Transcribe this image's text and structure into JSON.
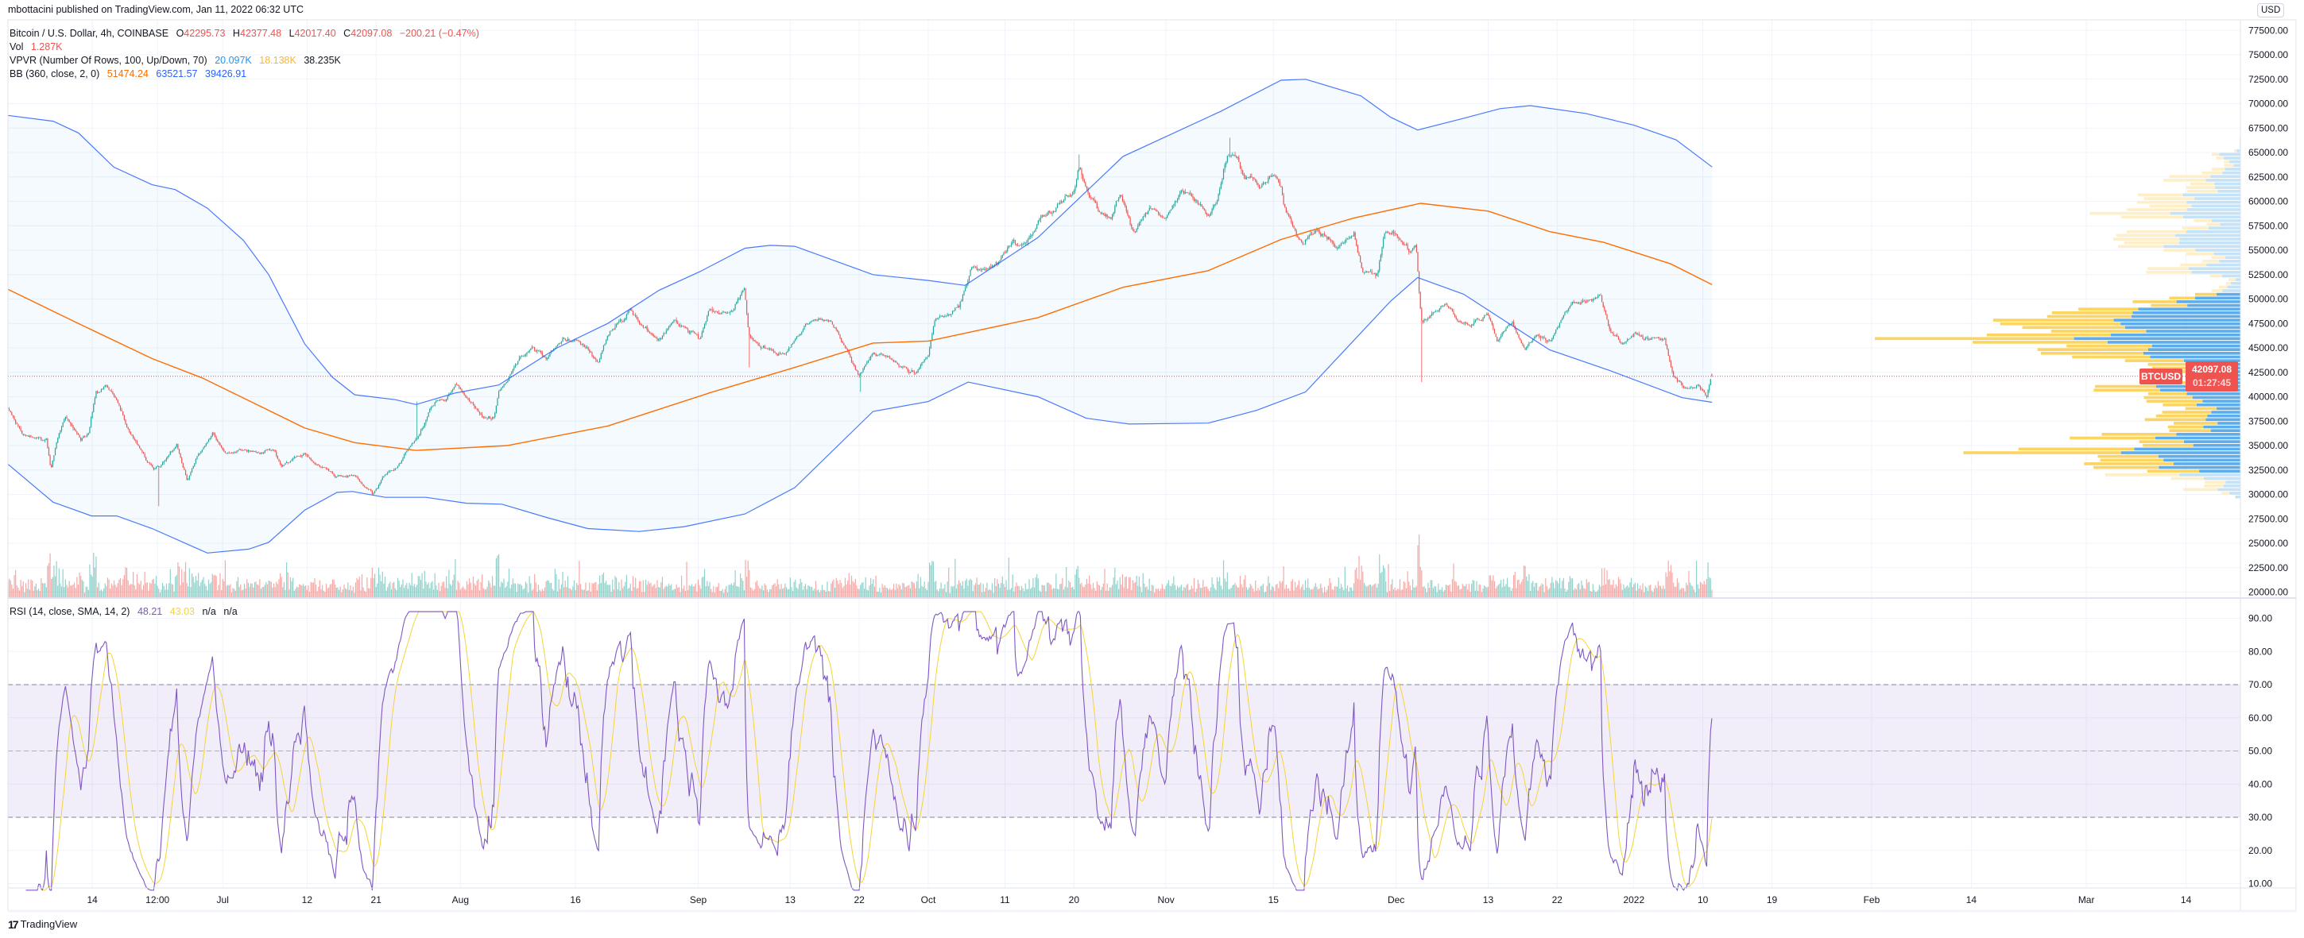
{
  "header": {
    "publisher_line": "mbottacini published on TradingView.com, Jan 11, 2022 06:32 UTC"
  },
  "legend": {
    "symbol": "Bitcoin / U.S. Dollar, 4h, COINBASE",
    "o_label": "O",
    "o": "42295.73",
    "h_label": "H",
    "h": "42377.48",
    "l_label": "L",
    "l": "42017.40",
    "c_label": "C",
    "c": "42097.08",
    "change": "−200.21 (−0.47%)",
    "vol_label": "Vol",
    "vol": "1.287K",
    "vpvr_label": "VPVR (Number Of Rows, 100, Up/Down, 70)",
    "vpvr_up": "20.097K",
    "vpvr_down": "18.138K",
    "vpvr_total": "38.235K",
    "bb_label": "BB (360, close, 2, 0)",
    "bb_basis": "51474.24",
    "bb_upper": "63521.57",
    "bb_lower": "39426.91"
  },
  "rsi_legend": {
    "label": "RSI (14, close, SMA, 14, 2)",
    "value": "48.21",
    "sma": "43.03",
    "na1": "n/a",
    "na2": "n/a"
  },
  "price_axis": {
    "currency": "USD",
    "labels": [
      "77500.00",
      "75000.00",
      "72500.00",
      "70000.00",
      "67500.00",
      "65000.00",
      "62500.00",
      "60000.00",
      "57500.00",
      "55000.00",
      "52500.00",
      "50000.00",
      "47500.00",
      "45000.00",
      "42500.00",
      "40000.00",
      "37500.00",
      "35000.00",
      "32500.00",
      "30000.00",
      "27500.00",
      "25000.00",
      "22500.00",
      "20000.00"
    ]
  },
  "rsi_axis": {
    "labels": [
      "90.00",
      "80.00",
      "70.00",
      "60.00",
      "50.00",
      "40.00",
      "30.00",
      "20.00",
      "10.00"
    ]
  },
  "time_axis": {
    "labels": [
      {
        "label": "14",
        "day": 11
      },
      {
        "label": "12:00",
        "day": 19.5
      },
      {
        "label": "Jul",
        "day": 28
      },
      {
        "label": "12",
        "day": 39
      },
      {
        "label": "21",
        "day": 48
      },
      {
        "label": "Aug",
        "day": 59
      },
      {
        "label": "16",
        "day": 74
      },
      {
        "label": "Sep",
        "day": 90
      },
      {
        "label": "13",
        "day": 102
      },
      {
        "label": "22",
        "day": 111
      },
      {
        "label": "Oct",
        "day": 120
      },
      {
        "label": "11",
        "day": 130
      },
      {
        "label": "20",
        "day": 139
      },
      {
        "label": "Nov",
        "day": 151
      },
      {
        "label": "15",
        "day": 165
      },
      {
        "label": "Dec",
        "day": 181
      },
      {
        "label": "13",
        "day": 193
      },
      {
        "label": "22",
        "day": 202
      },
      {
        "label": "2022",
        "day": 212
      },
      {
        "label": "10",
        "day": 221
      },
      {
        "label": "19",
        "day": 230
      },
      {
        "label": "Feb",
        "day": 243
      },
      {
        "label": "14",
        "day": 256
      },
      {
        "label": "Mar",
        "day": 271
      },
      {
        "label": "14",
        "day": 284
      }
    ]
  },
  "last_price": {
    "symbol": "BTCUSD",
    "price": "42097.08",
    "countdown": "01:27:45"
  },
  "footer": {
    "brand": "TradingView"
  },
  "colors": {
    "up": "#26a69a",
    "down": "#ef5350",
    "bb_basis": "#ff6d00",
    "bb_band": "#2962ff",
    "rsi": "#7e57c2",
    "rsi_sma": "#f5d33a",
    "vpvr_up": "#5dadec",
    "vpvr_down": "#fbd462",
    "vpvr_up_pale": "#c5e2f7",
    "vpvr_down_pale": "#feefc8",
    "grid": "#f0f3fa"
  },
  "chart_data": {
    "type": "candlestick",
    "title": "Bitcoin / U.S. Dollar, 4h, COINBASE",
    "x_unit": "days since 2021-06-03",
    "y_unit": "USD",
    "ylim": [
      20000,
      77500
    ],
    "rsi_ylim": [
      10,
      90
    ],
    "rsi_levels": [
      70,
      50,
      30
    ],
    "last_day": 222.1,
    "price_path": [
      [
        0,
        38700
      ],
      [
        2,
        36000
      ],
      [
        5,
        35500
      ],
      [
        5.6,
        32500
      ],
      [
        6.5,
        35800
      ],
      [
        7.5,
        38200
      ],
      [
        9.5,
        35500
      ],
      [
        10.5,
        36200
      ],
      [
        11.5,
        40500
      ],
      [
        12.8,
        41000
      ],
      [
        14.2,
        39500
      ],
      [
        15.5,
        36800
      ],
      [
        17,
        35000
      ],
      [
        18.5,
        33000
      ],
      [
        19,
        32500
      ],
      [
        20.7,
        33500
      ],
      [
        22,
        35000
      ],
      [
        23.4,
        31500
      ],
      [
        24.7,
        34000
      ],
      [
        26.7,
        36200
      ],
      [
        28.4,
        33900
      ],
      [
        30.7,
        34500
      ],
      [
        32.7,
        34400
      ],
      [
        34.6,
        34500
      ],
      [
        35.6,
        33000
      ],
      [
        38.7,
        34200
      ],
      [
        40.3,
        33200
      ],
      [
        42.6,
        32000
      ],
      [
        45.2,
        31800
      ],
      [
        47.6,
        30000
      ],
      [
        49.2,
        32000
      ],
      [
        50.9,
        33000
      ],
      [
        51.8,
        34200
      ],
      [
        53.2,
        35800
      ],
      [
        54.2,
        37300
      ],
      [
        55.8,
        39800
      ],
      [
        57.1,
        39700
      ],
      [
        58.4,
        41500
      ],
      [
        59.4,
        40500
      ],
      [
        61.8,
        38000
      ],
      [
        63.4,
        37800
      ],
      [
        64,
        40600
      ],
      [
        65,
        41700
      ],
      [
        66.3,
        43500
      ],
      [
        68.4,
        45200
      ],
      [
        70.4,
        44000
      ],
      [
        72.3,
        46200
      ],
      [
        74.3,
        45800
      ],
      [
        77,
        43800
      ],
      [
        78.2,
        46400
      ],
      [
        81.2,
        48800
      ],
      [
        82.9,
        46900
      ],
      [
        84.8,
        46000
      ],
      [
        86.8,
        48000
      ],
      [
        90.2,
        46000
      ],
      [
        91.5,
        48800
      ],
      [
        94.1,
        48800
      ],
      [
        96,
        51000
      ],
      [
        96.6,
        46500
      ],
      [
        97.4,
        45600
      ],
      [
        100,
        44200
      ],
      [
        102,
        45000
      ],
      [
        104.1,
        47600
      ],
      [
        107.4,
        47900
      ],
      [
        109,
        45500
      ],
      [
        111,
        42000
      ],
      [
        112.9,
        44500
      ],
      [
        116,
        43300
      ],
      [
        118.4,
        42100
      ],
      [
        120,
        44300
      ],
      [
        120.8,
        47600
      ],
      [
        124,
        49000
      ],
      [
        125.6,
        53100
      ],
      [
        128.7,
        53100
      ],
      [
        131,
        55500
      ],
      [
        132.7,
        55400
      ],
      [
        134.3,
        58100
      ],
      [
        136.7,
        59600
      ],
      [
        139.1,
        61300
      ],
      [
        139.7,
        64000
      ],
      [
        140.6,
        61500
      ],
      [
        142.3,
        59200
      ],
      [
        143.8,
        58300
      ],
      [
        145,
        60800
      ],
      [
        147,
        57000
      ],
      [
        148.6,
        59500
      ],
      [
        151,
        58500
      ],
      [
        153,
        61300
      ],
      [
        155,
        59800
      ],
      [
        156.5,
        58500
      ],
      [
        157.7,
        60100
      ],
      [
        158.5,
        63500
      ],
      [
        159.3,
        64800
      ],
      [
        160.5,
        63900
      ],
      [
        161.3,
        62300
      ],
      [
        163.2,
        61300
      ],
      [
        165.2,
        63000
      ],
      [
        166,
        61400
      ],
      [
        166.4,
        59200
      ],
      [
        167.6,
        57600
      ],
      [
        168.8,
        55600
      ],
      [
        170.8,
        57300
      ],
      [
        172.3,
        56200
      ],
      [
        173.2,
        54900
      ],
      [
        175.5,
        56400
      ],
      [
        176.7,
        52600
      ],
      [
        178.6,
        52700
      ],
      [
        179.5,
        56500
      ],
      [
        181,
        56500
      ],
      [
        182.7,
        54900
      ],
      [
        183.6,
        55600
      ],
      [
        183.9,
        52000
      ],
      [
        184.3,
        47700
      ],
      [
        185.5,
        48000
      ],
      [
        187.5,
        49600
      ],
      [
        189,
        47800
      ],
      [
        190.6,
        47200
      ],
      [
        193,
        48400
      ],
      [
        194.2,
        45800
      ],
      [
        196.2,
        47700
      ],
      [
        197.8,
        45000
      ],
      [
        199.3,
        46200
      ],
      [
        201,
        45600
      ],
      [
        202.5,
        47800
      ],
      [
        204,
        50000
      ],
      [
        206.4,
        49400
      ],
      [
        207.6,
        50400
      ],
      [
        208.8,
        46800
      ],
      [
        210.4,
        45600
      ],
      [
        212,
        46500
      ],
      [
        213.6,
        45900
      ],
      [
        216,
        45900
      ],
      [
        217.2,
        42400
      ],
      [
        218.8,
        40800
      ],
      [
        220.4,
        41100
      ],
      [
        221.5,
        40200
      ],
      [
        222.1,
        42097.08
      ]
    ],
    "wicks": [
      {
        "day": 19.6,
        "low": 28800
      },
      {
        "day": 53.4,
        "high": 39500
      },
      {
        "day": 96.6,
        "low": 43000
      },
      {
        "day": 111.1,
        "low": 40500
      },
      {
        "day": 184.3,
        "low": 41500
      },
      {
        "day": 159.4,
        "high": 66500
      },
      {
        "day": 139.7,
        "high": 64800
      }
    ],
    "bb_upper": [
      [
        0,
        68800
      ],
      [
        5.9,
        68200
      ],
      [
        9.2,
        67000
      ],
      [
        13.8,
        63500
      ],
      [
        18.8,
        61700
      ],
      [
        21.8,
        61200
      ],
      [
        26,
        59300
      ],
      [
        30.7,
        56000
      ],
      [
        34,
        52500
      ],
      [
        38.7,
        45400
      ],
      [
        42.3,
        42000
      ],
      [
        45.2,
        40200
      ],
      [
        50.5,
        39700
      ],
      [
        53.2,
        39200
      ],
      [
        58.4,
        40400
      ],
      [
        64,
        41200
      ],
      [
        71.6,
        45000
      ],
      [
        78.2,
        47500
      ],
      [
        84.9,
        50900
      ],
      [
        90.2,
        52800
      ],
      [
        96.1,
        55200
      ],
      [
        99.4,
        55500
      ],
      [
        102.6,
        55400
      ],
      [
        112.8,
        52500
      ],
      [
        120,
        51900
      ],
      [
        124.8,
        51400
      ],
      [
        134.3,
        56300
      ],
      [
        145.4,
        64600
      ],
      [
        158.1,
        69200
      ],
      [
        166,
        72400
      ],
      [
        169.2,
        72500
      ],
      [
        176.4,
        70800
      ],
      [
        180.3,
        68600
      ],
      [
        183.8,
        67300
      ],
      [
        189.8,
        68500
      ],
      [
        194.6,
        69500
      ],
      [
        198.5,
        69800
      ],
      [
        205.7,
        69000
      ],
      [
        212,
        67800
      ],
      [
        217.5,
        66300
      ],
      [
        222.2,
        63521.57
      ]
    ],
    "bb_basis": [
      [
        0,
        51000
      ],
      [
        8.9,
        47600
      ],
      [
        18.8,
        43900
      ],
      [
        25.4,
        41900
      ],
      [
        38.7,
        36800
      ],
      [
        45.2,
        35300
      ],
      [
        53.2,
        34500
      ],
      [
        65.1,
        35000
      ],
      [
        78.2,
        37000
      ],
      [
        91.5,
        40400
      ],
      [
        102.6,
        43000
      ],
      [
        112.8,
        45500
      ],
      [
        120,
        45700
      ],
      [
        134.3,
        48100
      ],
      [
        145.4,
        51200
      ],
      [
        156.5,
        52900
      ],
      [
        166,
        56100
      ],
      [
        175.5,
        58300
      ],
      [
        184.2,
        59800
      ],
      [
        193,
        59000
      ],
      [
        201,
        56900
      ],
      [
        208.1,
        55800
      ],
      [
        216.8,
        53600
      ],
      [
        222.2,
        51474.24
      ]
    ],
    "bb_lower": [
      [
        0,
        33100
      ],
      [
        5.9,
        29200
      ],
      [
        10.9,
        27800
      ],
      [
        14.2,
        27800
      ],
      [
        18.8,
        26500
      ],
      [
        26,
        24000
      ],
      [
        31.4,
        24400
      ],
      [
        34,
        25100
      ],
      [
        38.7,
        28400
      ],
      [
        42.9,
        30200
      ],
      [
        44.9,
        30300
      ],
      [
        49.2,
        29700
      ],
      [
        54.5,
        29700
      ],
      [
        59.8,
        29100
      ],
      [
        64.4,
        29000
      ],
      [
        70.4,
        27600
      ],
      [
        75.6,
        26500
      ],
      [
        82.3,
        26200
      ],
      [
        88.2,
        26700
      ],
      [
        96.1,
        28000
      ],
      [
        102.6,
        30700
      ],
      [
        112.8,
        38500
      ],
      [
        120,
        39500
      ],
      [
        125.2,
        41500
      ],
      [
        134.3,
        40000
      ],
      [
        140.6,
        37800
      ],
      [
        146.2,
        37200
      ],
      [
        156.5,
        37300
      ],
      [
        162.8,
        38600
      ],
      [
        169.2,
        40500
      ],
      [
        180.3,
        49800
      ],
      [
        183.8,
        52200
      ],
      [
        189.8,
        50500
      ],
      [
        201,
        44800
      ],
      [
        208.8,
        42700
      ],
      [
        218.3,
        39900
      ],
      [
        222.2,
        39426.91
      ]
    ],
    "vpvr": {
      "rows": 100,
      "value_area_pct": 70
    }
  }
}
